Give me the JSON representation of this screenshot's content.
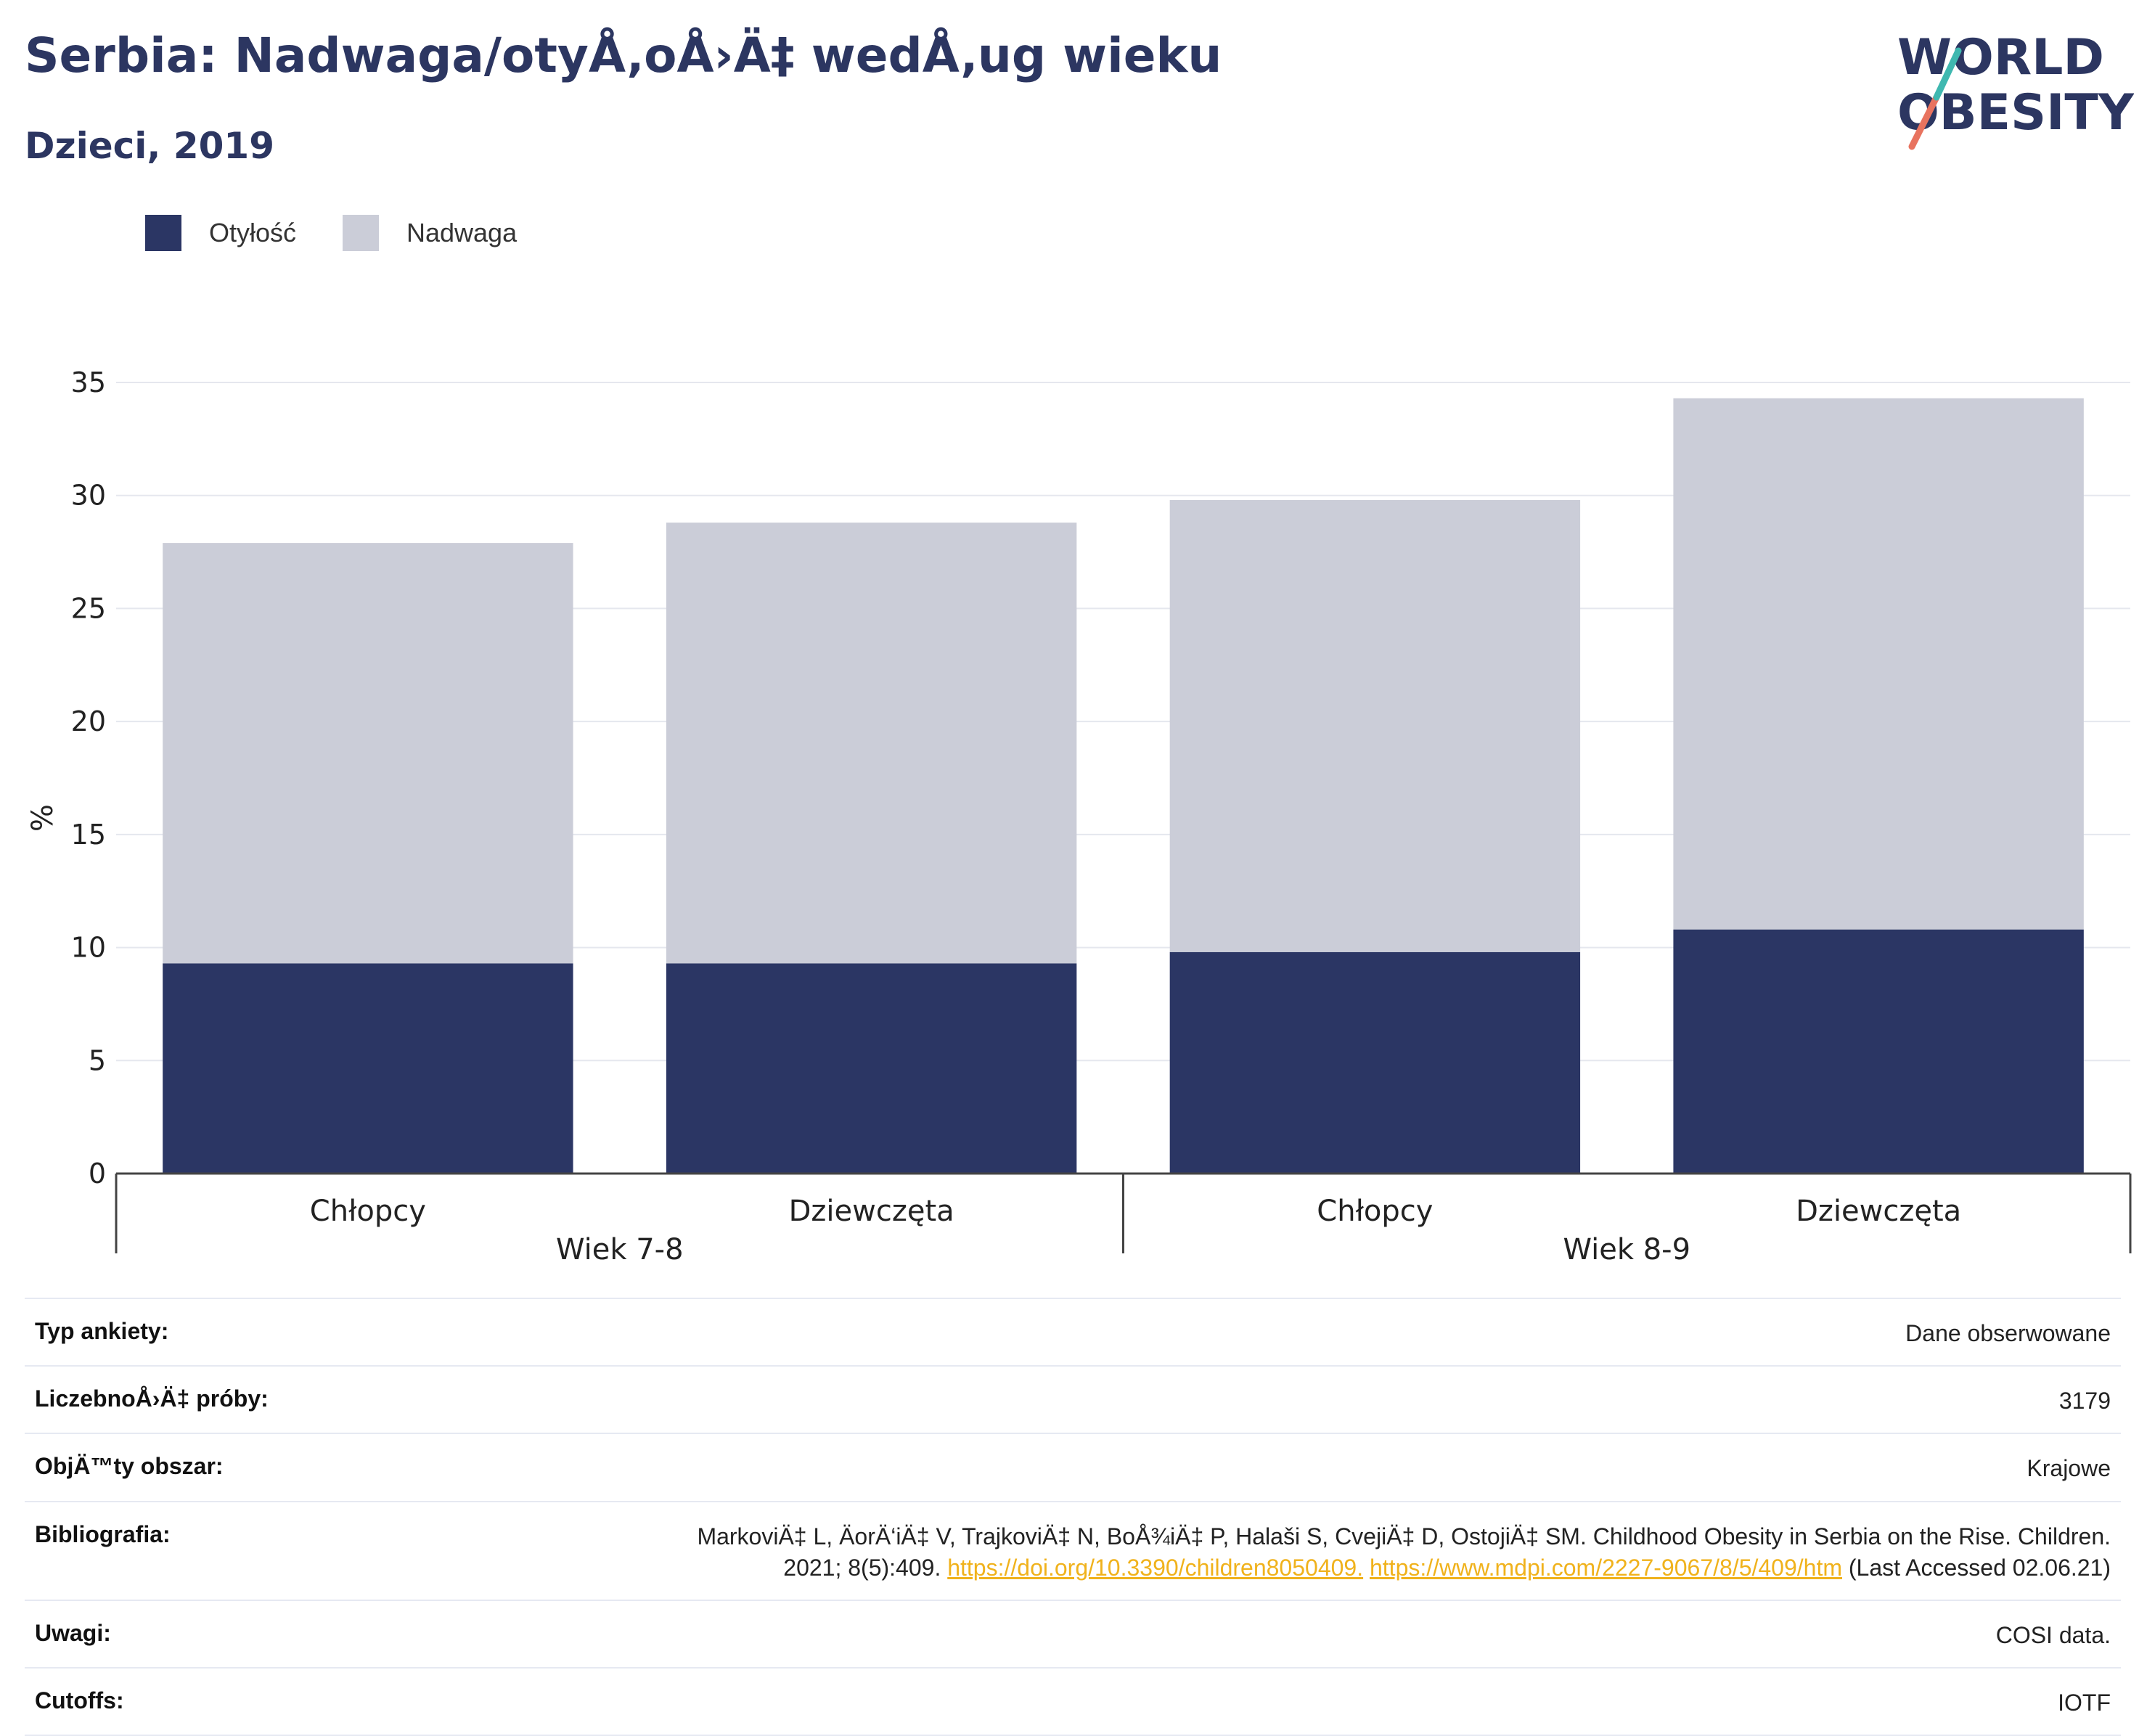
{
  "header": {
    "title": "Serbia: Nadwaga/otyÅ‚oÅ›Ä‡ wedÅ‚ug wieku",
    "subtitle": "Dzieci, 2019"
  },
  "logo": {
    "line1": "WORLD",
    "line2": "OBESITY"
  },
  "colors": {
    "obesity": "#2b3664",
    "overweight": "#cbcdd8",
    "title": "#2c3661",
    "link": "#f0b21c"
  },
  "legend": [
    {
      "label": "Otyłość",
      "color": "#2b3664"
    },
    {
      "label": "Nadwaga",
      "color": "#cbcdd8"
    }
  ],
  "chart_data": {
    "type": "bar",
    "stacked": true,
    "title": "Serbia: Nadwaga/otyÅ‚oÅ›Ä‡ wedÅ‚ug wieku",
    "subtitle": "Dzieci, 2019",
    "ylabel": "%",
    "ylim": [
      0,
      35
    ],
    "yticks": [
      0,
      5,
      10,
      15,
      20,
      25,
      30,
      35
    ],
    "grid": true,
    "legend_position": "top-left",
    "categories": [
      "Chłopcy",
      "Dziewczęta",
      "Chłopcy",
      "Dziewczęta"
    ],
    "groups": [
      {
        "label": "Wiek 7-8",
        "categories": [
          "Chłopcy",
          "Dziewczęta"
        ]
      },
      {
        "label": "Wiek 8-9",
        "categories": [
          "Chłopcy",
          "Dziewczęta"
        ]
      }
    ],
    "series": [
      {
        "name": "Otyłość",
        "values": [
          9.3,
          9.3,
          9.8,
          10.8
        ]
      },
      {
        "name": "Nadwaga",
        "values": [
          18.6,
          19.5,
          20.0,
          23.5
        ]
      }
    ]
  },
  "meta": [
    {
      "key": "Typ ankiety:",
      "value": "Dane obserwowane"
    },
    {
      "key": "LiczebnoÅ›Ä‡ próby:",
      "value": "3179"
    },
    {
      "key": "ObjÄ™ty obszar:",
      "value": "Krajowe"
    },
    {
      "key": "Bibliografia:",
      "line1": "MarkoviÄ‡ L, ÄorÄ‘iÄ‡ V, TrajkoviÄ‡ N, BoÅ¾iÄ‡ P, Halaši S, CvejiÄ‡ D, OstojiÄ‡ SM. Childhood Obesity in Serbia on the Rise. Children.",
      "line2_pre": "2021; 8(5):409.",
      "link1": "https://doi.org/10.3390/children8050409.",
      "link2": "https://www.mdpi.com/2227-9067/8/5/409/htm",
      "line2_post": "(Last Accessed 02.06.21)"
    },
    {
      "key": "Uwagi:",
      "value": "COSI data."
    },
    {
      "key": "Cutoffs:",
      "value": "IOTF"
    }
  ]
}
